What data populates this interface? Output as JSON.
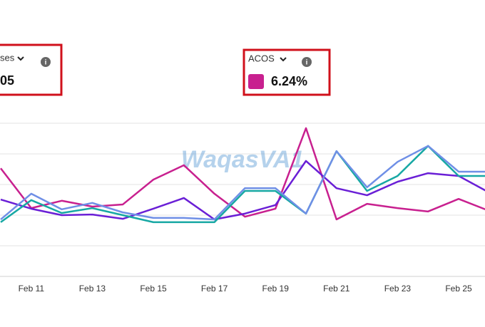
{
  "metrics": [
    {
      "label": "ses",
      "value": "05"
    },
    {
      "label": "ACOS",
      "value": "6.24%",
      "color": "#c8208f"
    }
  ],
  "watermark": "WaqasVA1",
  "chart_data": {
    "type": "line",
    "categories": [
      null,
      "Feb 11",
      null,
      "Feb 13",
      null,
      "Feb 15",
      null,
      "Feb 17",
      null,
      "Feb 19",
      null,
      "Feb 21",
      null,
      "Feb 23",
      null,
      "Feb 25",
      null
    ],
    "ylim": [
      0,
      5
    ],
    "series": [
      {
        "color": "#c8208f",
        "values": [
          3.53,
          2.23,
          2.47,
          2.28,
          2.35,
          3.16,
          3.63,
          2.7,
          1.95,
          2.21,
          4.84,
          1.86,
          2.37,
          2.23,
          2.12,
          2.53,
          2.14
        ]
      },
      {
        "color": "#6a1fd6",
        "values": [
          2.51,
          2.21,
          2.0,
          2.02,
          1.88,
          2.21,
          2.56,
          1.86,
          2.05,
          2.33,
          3.77,
          2.88,
          2.65,
          3.09,
          3.37,
          3.28,
          2.74
        ]
      },
      {
        "color": "#17a8a4",
        "values": [
          1.77,
          2.49,
          2.07,
          2.23,
          2.0,
          1.77,
          1.77,
          1.77,
          2.79,
          2.79,
          2.05,
          4.09,
          2.79,
          3.28,
          4.26,
          3.28,
          3.28
        ]
      },
      {
        "color": "#6f8fe6",
        "values": [
          1.86,
          2.7,
          2.19,
          2.4,
          2.09,
          1.91,
          1.91,
          1.86,
          2.88,
          2.88,
          2.05,
          4.09,
          2.91,
          3.74,
          4.26,
          3.42,
          3.42
        ]
      }
    ]
  }
}
